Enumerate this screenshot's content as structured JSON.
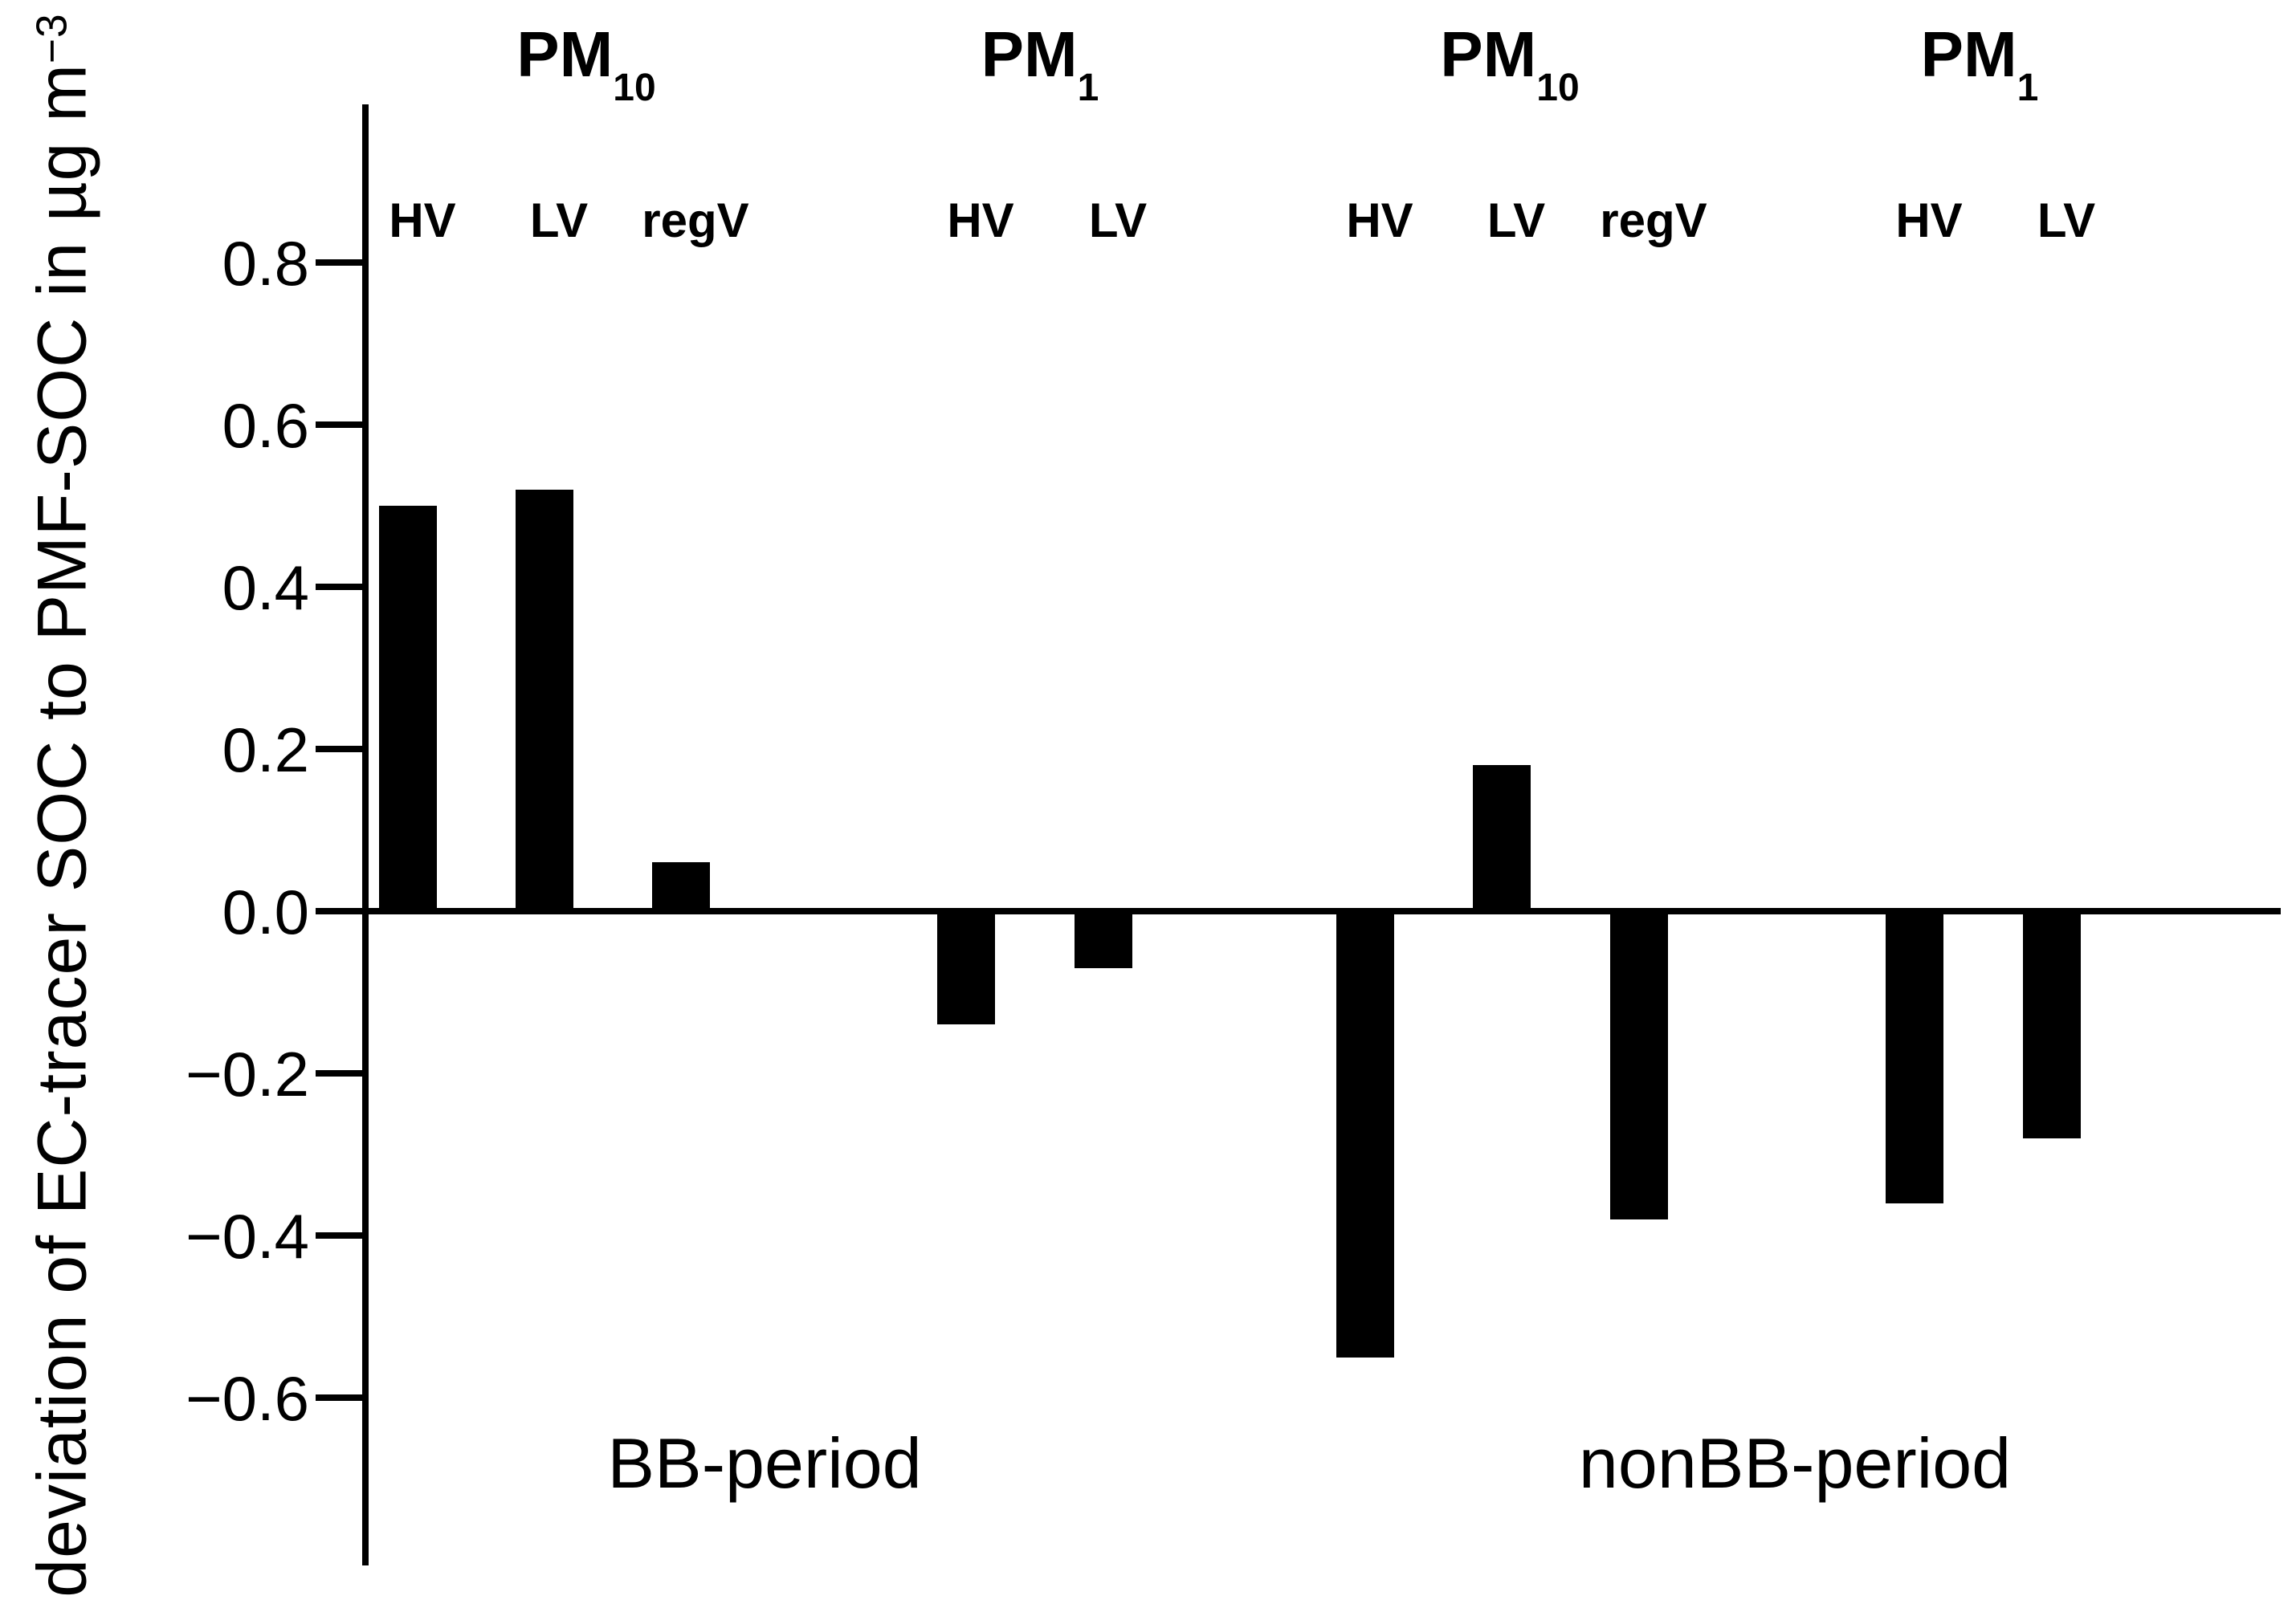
{
  "chart_data": {
    "type": "bar",
    "title": "",
    "ylabel": "deviation of EC-tracer SOC to PMF-SOC in µg m−3",
    "ylabel_main": "deviation of EC-tracer SOC to PMF-SOC in µg m",
    "ylabel_sup": "−3",
    "xlabel": "",
    "ylim": [
      -0.8,
      1.0
    ],
    "grid": false,
    "legend": false,
    "background_color": "#ffffff",
    "bar_color": "#000000",
    "yticks": [
      0.8,
      0.6,
      0.4,
      0.2,
      0.0,
      -0.2,
      -0.4,
      -0.6
    ],
    "ytick_labels": [
      "0.8",
      "0.6",
      "0.4",
      "0.2",
      "0.0",
      "−0.2",
      "−0.4",
      "−0.6"
    ],
    "period_labels": [
      "BB-period",
      "nonBB-period"
    ],
    "groups": [
      {
        "pm_label": "PM",
        "pm_sub": "10",
        "period": "BB-period",
        "bars": [
          {
            "label": "HV",
            "value": 0.5
          },
          {
            "label": "LV",
            "value": 0.52
          },
          {
            "label": "regV",
            "value": 0.06
          }
        ]
      },
      {
        "pm_label": "PM",
        "pm_sub": "1",
        "period": "BB-period",
        "bars": [
          {
            "label": "HV",
            "value": -0.14
          },
          {
            "label": "LV",
            "value": -0.07
          }
        ]
      },
      {
        "pm_label": "PM",
        "pm_sub": "10",
        "period": "nonBB-period",
        "bars": [
          {
            "label": "HV",
            "value": -0.55
          },
          {
            "label": "LV",
            "value": 0.18
          },
          {
            "label": "regV",
            "value": -0.38
          }
        ]
      },
      {
        "pm_label": "PM",
        "pm_sub": "1",
        "period": "nonBB-period",
        "bars": [
          {
            "label": "HV",
            "value": -0.36
          },
          {
            "label": "LV",
            "value": -0.28
          }
        ]
      }
    ]
  }
}
